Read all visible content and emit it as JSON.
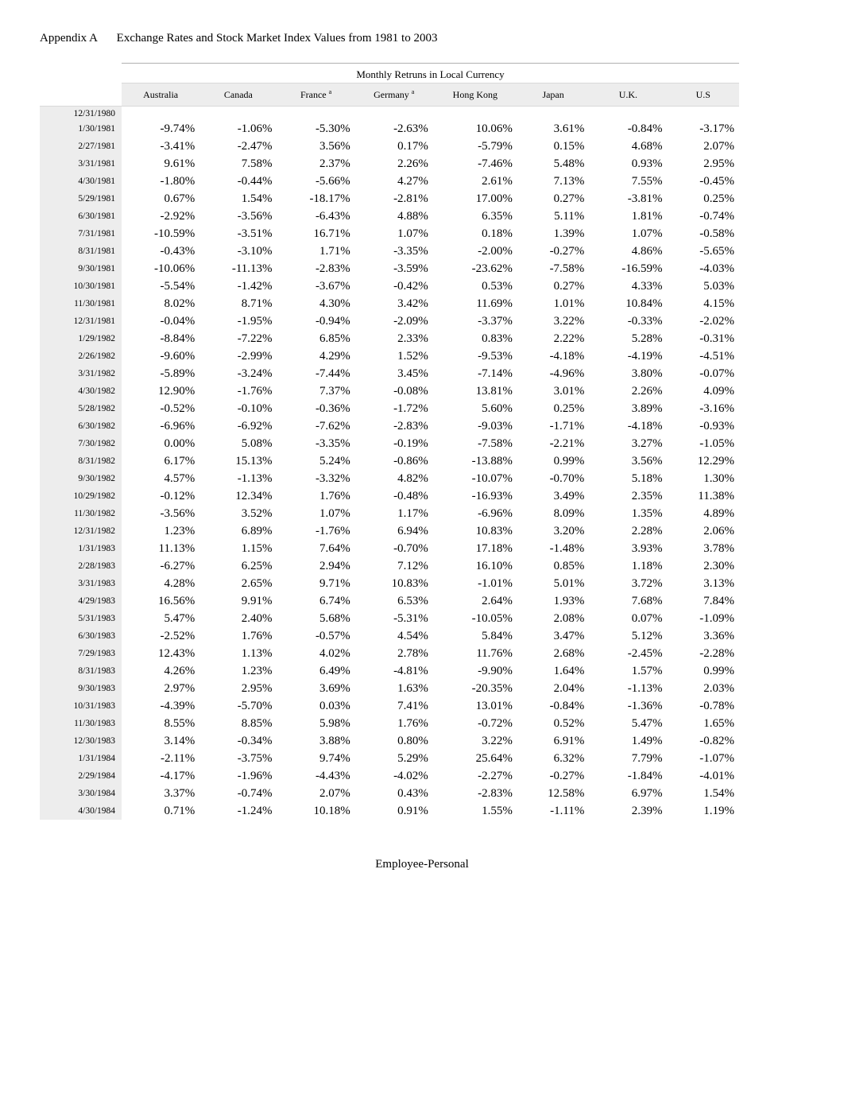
{
  "title": {
    "appendix": "Appendix A",
    "main": "Exchange Rates and Stock Market Index Values from 1981 to 2003"
  },
  "table": {
    "caption": "Monthly Retruns in Local Currency",
    "columns": [
      "Australia",
      "Canada",
      "France ",
      "Germany ",
      "Hong Kong",
      "Japan",
      "U.K.",
      "U.S"
    ],
    "footnote_cols": [
      2,
      3
    ],
    "footnote_mark": "a",
    "dates": [
      "12/31/1980",
      "1/30/1981",
      "2/27/1981",
      "3/31/1981",
      "4/30/1981",
      "5/29/1981",
      "6/30/1981",
      "7/31/1981",
      "8/31/1981",
      "9/30/1981",
      "10/30/1981",
      "11/30/1981",
      "12/31/1981",
      "1/29/1982",
      "2/26/1982",
      "3/31/1982",
      "4/30/1982",
      "5/28/1982",
      "6/30/1982",
      "7/30/1982",
      "8/31/1982",
      "9/30/1982",
      "10/29/1982",
      "11/30/1982",
      "12/31/1982",
      "1/31/1983",
      "2/28/1983",
      "3/31/1983",
      "4/29/1983",
      "5/31/1983",
      "6/30/1983",
      "7/29/1983",
      "8/31/1983",
      "9/30/1983",
      "10/31/1983",
      "11/30/1983",
      "12/30/1983",
      "1/31/1984",
      "2/29/1984",
      "3/30/1984",
      "4/30/1984"
    ],
    "rows": [
      [
        "",
        "",
        "",
        "",
        "",
        "",
        "",
        ""
      ],
      [
        "-9.74%",
        "-1.06%",
        "-5.30%",
        "-2.63%",
        "10.06%",
        "3.61%",
        "-0.84%",
        "-3.17%"
      ],
      [
        "-3.41%",
        "-2.47%",
        "3.56%",
        "0.17%",
        "-5.79%",
        "0.15%",
        "4.68%",
        "2.07%"
      ],
      [
        "9.61%",
        "7.58%",
        "2.37%",
        "2.26%",
        "-7.46%",
        "5.48%",
        "0.93%",
        "2.95%"
      ],
      [
        "-1.80%",
        "-0.44%",
        "-5.66%",
        "4.27%",
        "2.61%",
        "7.13%",
        "7.55%",
        "-0.45%"
      ],
      [
        "0.67%",
        "1.54%",
        "-18.17%",
        "-2.81%",
        "17.00%",
        "0.27%",
        "-3.81%",
        "0.25%"
      ],
      [
        "-2.92%",
        "-3.56%",
        "-6.43%",
        "4.88%",
        "6.35%",
        "5.11%",
        "1.81%",
        "-0.74%"
      ],
      [
        "-10.59%",
        "-3.51%",
        "16.71%",
        "1.07%",
        "0.18%",
        "1.39%",
        "1.07%",
        "-0.58%"
      ],
      [
        "-0.43%",
        "-3.10%",
        "1.71%",
        "-3.35%",
        "-2.00%",
        "-0.27%",
        "4.86%",
        "-5.65%"
      ],
      [
        "-10.06%",
        "-11.13%",
        "-2.83%",
        "-3.59%",
        "-23.62%",
        "-7.58%",
        "-16.59%",
        "-4.03%"
      ],
      [
        "-5.54%",
        "-1.42%",
        "-3.67%",
        "-0.42%",
        "0.53%",
        "0.27%",
        "4.33%",
        "5.03%"
      ],
      [
        "8.02%",
        "8.71%",
        "4.30%",
        "3.42%",
        "11.69%",
        "1.01%",
        "10.84%",
        "4.15%"
      ],
      [
        "-0.04%",
        "-1.95%",
        "-0.94%",
        "-2.09%",
        "-3.37%",
        "3.22%",
        "-0.33%",
        "-2.02%"
      ],
      [
        "-8.84%",
        "-7.22%",
        "6.85%",
        "2.33%",
        "0.83%",
        "2.22%",
        "5.28%",
        "-0.31%"
      ],
      [
        "-9.60%",
        "-2.99%",
        "4.29%",
        "1.52%",
        "-9.53%",
        "-4.18%",
        "-4.19%",
        "-4.51%"
      ],
      [
        "-5.89%",
        "-3.24%",
        "-7.44%",
        "3.45%",
        "-7.14%",
        "-4.96%",
        "3.80%",
        "-0.07%"
      ],
      [
        "12.90%",
        "-1.76%",
        "7.37%",
        "-0.08%",
        "13.81%",
        "3.01%",
        "2.26%",
        "4.09%"
      ],
      [
        "-0.52%",
        "-0.10%",
        "-0.36%",
        "-1.72%",
        "5.60%",
        "0.25%",
        "3.89%",
        "-3.16%"
      ],
      [
        "-6.96%",
        "-6.92%",
        "-7.62%",
        "-2.83%",
        "-9.03%",
        "-1.71%",
        "-4.18%",
        "-0.93%"
      ],
      [
        "0.00%",
        "5.08%",
        "-3.35%",
        "-0.19%",
        "-7.58%",
        "-2.21%",
        "3.27%",
        "-1.05%"
      ],
      [
        "6.17%",
        "15.13%",
        "5.24%",
        "-0.86%",
        "-13.88%",
        "0.99%",
        "3.56%",
        "12.29%"
      ],
      [
        "4.57%",
        "-1.13%",
        "-3.32%",
        "4.82%",
        "-10.07%",
        "-0.70%",
        "5.18%",
        "1.30%"
      ],
      [
        "-0.12%",
        "12.34%",
        "1.76%",
        "-0.48%",
        "-16.93%",
        "3.49%",
        "2.35%",
        "11.38%"
      ],
      [
        "-3.56%",
        "3.52%",
        "1.07%",
        "1.17%",
        "-6.96%",
        "8.09%",
        "1.35%",
        "4.89%"
      ],
      [
        "1.23%",
        "6.89%",
        "-1.76%",
        "6.94%",
        "10.83%",
        "3.20%",
        "2.28%",
        "2.06%"
      ],
      [
        "11.13%",
        "1.15%",
        "7.64%",
        "-0.70%",
        "17.18%",
        "-1.48%",
        "3.93%",
        "3.78%"
      ],
      [
        "-6.27%",
        "6.25%",
        "2.94%",
        "7.12%",
        "16.10%",
        "0.85%",
        "1.18%",
        "2.30%"
      ],
      [
        "4.28%",
        "2.65%",
        "9.71%",
        "10.83%",
        "-1.01%",
        "5.01%",
        "3.72%",
        "3.13%"
      ],
      [
        "16.56%",
        "9.91%",
        "6.74%",
        "6.53%",
        "2.64%",
        "1.93%",
        "7.68%",
        "7.84%"
      ],
      [
        "5.47%",
        "2.40%",
        "5.68%",
        "-5.31%",
        "-10.05%",
        "2.08%",
        "0.07%",
        "-1.09%"
      ],
      [
        "-2.52%",
        "1.76%",
        "-0.57%",
        "4.54%",
        "5.84%",
        "3.47%",
        "5.12%",
        "3.36%"
      ],
      [
        "12.43%",
        "1.13%",
        "4.02%",
        "2.78%",
        "11.76%",
        "2.68%",
        "-2.45%",
        "-2.28%"
      ],
      [
        "4.26%",
        "1.23%",
        "6.49%",
        "-4.81%",
        "-9.90%",
        "1.64%",
        "1.57%",
        "0.99%"
      ],
      [
        "2.97%",
        "2.95%",
        "3.69%",
        "1.63%",
        "-20.35%",
        "2.04%",
        "-1.13%",
        "2.03%"
      ],
      [
        "-4.39%",
        "-5.70%",
        "0.03%",
        "7.41%",
        "13.01%",
        "-0.84%",
        "-1.36%",
        "-0.78%"
      ],
      [
        "8.55%",
        "8.85%",
        "5.98%",
        "1.76%",
        "-0.72%",
        "0.52%",
        "5.47%",
        "1.65%"
      ],
      [
        "3.14%",
        "-0.34%",
        "3.88%",
        "0.80%",
        "3.22%",
        "6.91%",
        "1.49%",
        "-0.82%"
      ],
      [
        "-2.11%",
        "-3.75%",
        "9.74%",
        "5.29%",
        "25.64%",
        "6.32%",
        "7.79%",
        "-1.07%"
      ],
      [
        "-4.17%",
        "-1.96%",
        "-4.43%",
        "-4.02%",
        "-2.27%",
        "-0.27%",
        "-1.84%",
        "-4.01%"
      ],
      [
        "3.37%",
        "-0.74%",
        "2.07%",
        "0.43%",
        "-2.83%",
        "12.58%",
        "6.97%",
        "1.54%"
      ],
      [
        "0.71%",
        "-1.24%",
        "10.18%",
        "0.91%",
        "1.55%",
        "-1.11%",
        "2.39%",
        "1.19%"
      ]
    ]
  },
  "footer": "Employee-Personal",
  "colors": {
    "header_bg": "#ededed",
    "border": "#b0b0b0",
    "text": "#000000",
    "background": "#ffffff"
  }
}
